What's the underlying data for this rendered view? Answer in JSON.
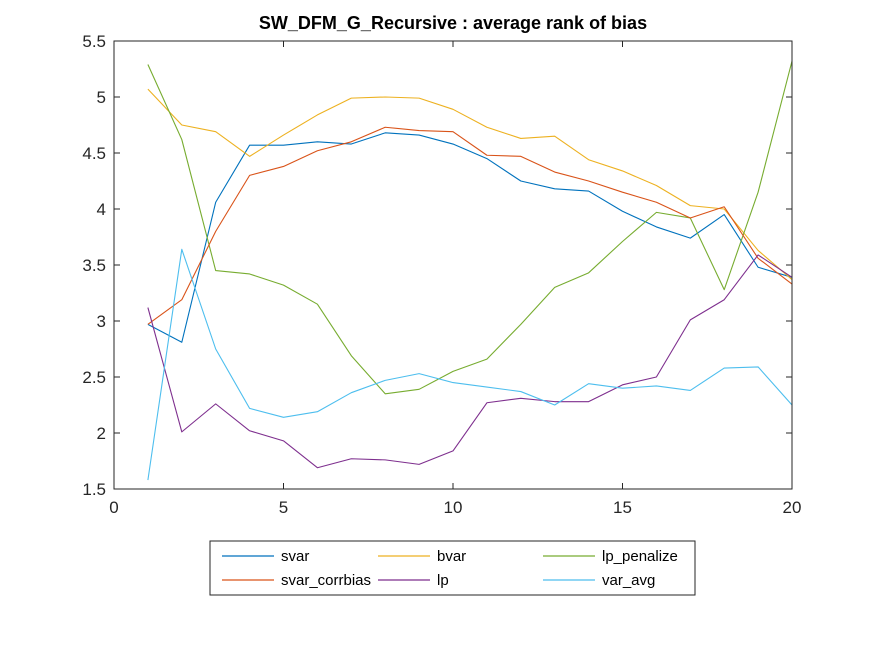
{
  "chart_data": {
    "type": "line",
    "title": "SW_DFM_G_Recursive : average rank of bias",
    "xlabel": "",
    "ylabel": "",
    "xlim": [
      0,
      20
    ],
    "ylim": [
      1.5,
      5.5
    ],
    "xticks": [
      0,
      5,
      10,
      15,
      20
    ],
    "yticks": [
      1.5,
      2,
      2.5,
      3,
      3.5,
      4,
      4.5,
      5,
      5.5
    ],
    "xtick_labels": [
      "0",
      "5",
      "10",
      "15",
      "20"
    ],
    "ytick_labels": [
      "1.5",
      "2",
      "2.5",
      "3",
      "3.5",
      "4",
      "4.5",
      "5",
      "5.5"
    ],
    "grid": false,
    "legend_position": "bottom-outside",
    "x": [
      1,
      2,
      3,
      4,
      5,
      6,
      7,
      8,
      9,
      10,
      11,
      12,
      13,
      14,
      15,
      16,
      17,
      18,
      19,
      20
    ],
    "series": [
      {
        "name": "svar",
        "color": "#0072bd",
        "values": [
          2.97,
          2.81,
          4.06,
          4.57,
          4.57,
          4.6,
          4.58,
          4.68,
          4.66,
          4.58,
          4.45,
          4.25,
          4.18,
          4.16,
          3.98,
          3.84,
          3.74,
          3.95,
          3.48,
          3.39
        ]
      },
      {
        "name": "bvar",
        "color": "#edb120",
        "values": [
          5.07,
          4.75,
          4.69,
          4.47,
          4.66,
          4.84,
          4.99,
          5.0,
          4.99,
          4.89,
          4.73,
          4.63,
          4.65,
          4.44,
          4.34,
          4.21,
          4.03,
          4.0,
          3.63,
          3.37
        ]
      },
      {
        "name": "lp_penalize",
        "color": "#77ac30",
        "values": [
          5.29,
          4.62,
          3.45,
          3.42,
          3.32,
          3.15,
          2.69,
          2.35,
          2.39,
          2.55,
          2.66,
          2.97,
          3.3,
          3.43,
          3.71,
          3.97,
          3.92,
          3.28,
          4.15,
          5.32
        ]
      },
      {
        "name": "svar_corrbias",
        "color": "#d95319",
        "values": [
          2.97,
          3.19,
          3.8,
          4.3,
          4.38,
          4.52,
          4.6,
          4.73,
          4.7,
          4.69,
          4.48,
          4.47,
          4.33,
          4.25,
          4.15,
          4.06,
          3.92,
          4.02,
          3.56,
          3.33
        ]
      },
      {
        "name": "lp",
        "color": "#7e2f8e",
        "values": [
          3.12,
          2.01,
          2.26,
          2.02,
          1.93,
          1.69,
          1.77,
          1.76,
          1.72,
          1.84,
          2.27,
          2.31,
          2.28,
          2.28,
          2.43,
          2.5,
          3.01,
          3.19,
          3.59,
          3.39
        ]
      },
      {
        "name": "var_avg",
        "color": "#4dbeee",
        "values": [
          1.58,
          3.64,
          2.75,
          2.22,
          2.14,
          2.19,
          2.36,
          2.47,
          2.53,
          2.45,
          2.41,
          2.37,
          2.25,
          2.44,
          2.4,
          2.42,
          2.38,
          2.58,
          2.59,
          2.25
        ]
      }
    ],
    "legend_order": [
      "svar",
      "bvar",
      "lp_penalize",
      "svar_corrbias",
      "lp",
      "var_avg"
    ]
  }
}
